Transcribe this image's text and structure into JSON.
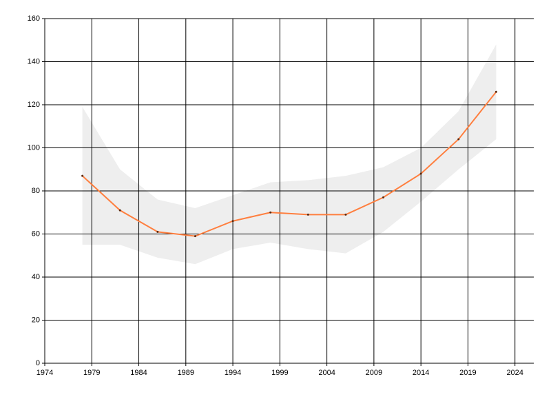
{
  "chart_data": {
    "type": "line",
    "x": [
      1978,
      1982,
      1986,
      1990,
      1994,
      1998,
      2002,
      2006,
      2010,
      2014,
      2018,
      2022
    ],
    "series": [
      {
        "color": "#ff7f3f",
        "values": [
          87,
          71,
          61,
          59,
          66,
          70,
          69,
          69,
          77,
          88,
          104,
          126
        ],
        "upper": [
          119,
          90,
          76,
          72,
          78,
          84,
          85,
          87,
          91,
          100,
          117,
          148
        ],
        "lower": [
          55,
          55,
          49,
          46,
          53,
          56,
          53,
          51,
          61,
          75,
          90,
          104
        ],
        "band_color": "#eeeeee"
      }
    ],
    "xlim": [
      1974,
      2026
    ],
    "xticks": [
      1974,
      1979,
      1984,
      1989,
      1994,
      1999,
      2004,
      2009,
      2014,
      2019,
      2024
    ],
    "ylim": [
      0,
      160
    ],
    "yticks": [
      0,
      20,
      40,
      60,
      80,
      100,
      120,
      140,
      160
    ],
    "grid": true
  }
}
